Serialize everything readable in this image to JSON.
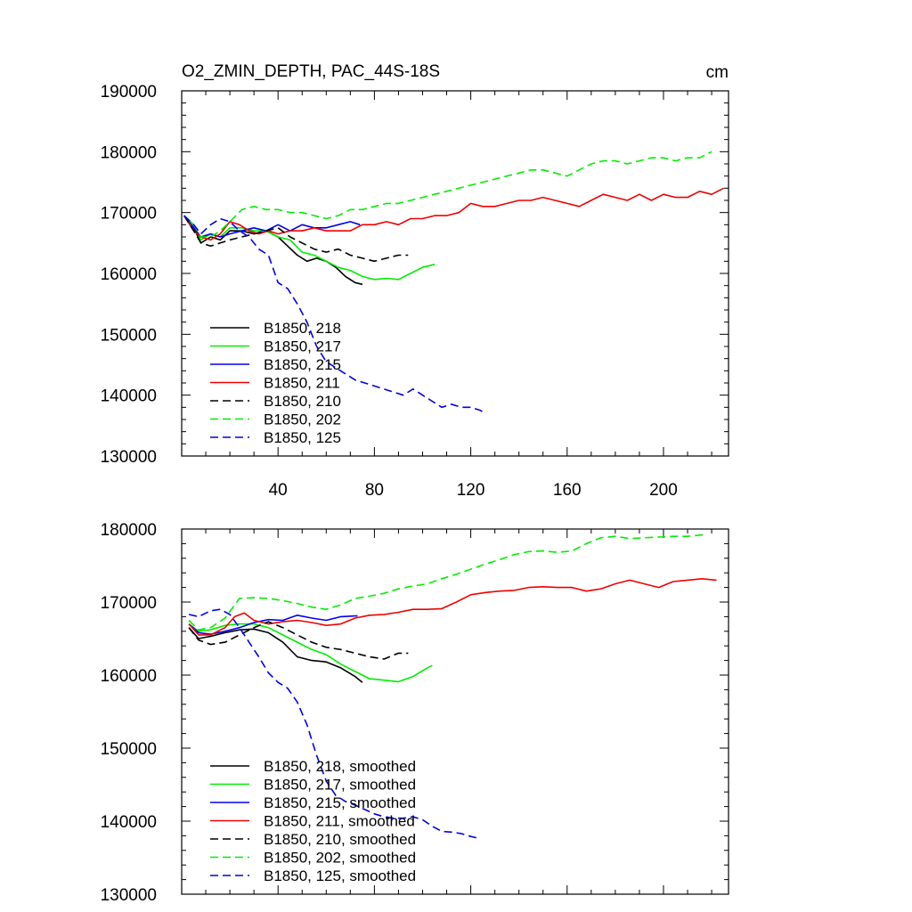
{
  "colors": {
    "black": "#000000",
    "green": "#00ee00",
    "blue": "#0000ee",
    "red": "#ee0000"
  },
  "chart_data": [
    {
      "type": "line",
      "title": "O2_ZMIN_DEPTH, PAC_44S-18S",
      "units": "cm",
      "xlim": [
        0,
        227
      ],
      "ylim": [
        130000,
        190000
      ],
      "x_ticks": [
        40,
        80,
        120,
        160,
        200
      ],
      "x_tick_labels": [
        "40",
        "80",
        "120",
        "160",
        "200"
      ],
      "y_ticks": [
        130000,
        140000,
        150000,
        160000,
        170000,
        180000,
        190000
      ],
      "y_tick_labels": [
        "130000",
        "140000",
        "150000",
        "160000",
        "170000",
        "180000",
        "190000"
      ],
      "legend_position": "bottom-left",
      "series": [
        {
          "name": "B1850, 218",
          "color": "#000000",
          "dash": "solid",
          "x": [
            1,
            5,
            8,
            12,
            16,
            20,
            25,
            30,
            35,
            40,
            44,
            48,
            52,
            56,
            60,
            64,
            68,
            72,
            75
          ],
          "y": [
            169500,
            167500,
            165000,
            166000,
            165500,
            167000,
            167000,
            166500,
            167000,
            166000,
            164500,
            163000,
            162000,
            162500,
            162000,
            161000,
            159500,
            158500,
            158200
          ]
        },
        {
          "name": "B1850, 217",
          "color": "#00ee00",
          "dash": "solid",
          "x": [
            1,
            5,
            8,
            12,
            16,
            20,
            25,
            30,
            35,
            40,
            45,
            50,
            55,
            60,
            65,
            70,
            75,
            80,
            85,
            90,
            95,
            100,
            105
          ],
          "y": [
            169500,
            168000,
            165500,
            166500,
            166000,
            167500,
            167500,
            167000,
            167000,
            166000,
            165500,
            163500,
            163000,
            162000,
            161000,
            160500,
            159500,
            159000,
            159200,
            159000,
            160000,
            161000,
            161500
          ]
        },
        {
          "name": "B1850, 215",
          "color": "#0000ee",
          "dash": "solid",
          "x": [
            1,
            5,
            8,
            12,
            16,
            20,
            25,
            30,
            35,
            40,
            45,
            50,
            55,
            60,
            65,
            70,
            74
          ],
          "y": [
            169500,
            167500,
            166000,
            166500,
            166000,
            166500,
            167000,
            167500,
            167000,
            168000,
            167000,
            168000,
            167500,
            167500,
            168000,
            168500,
            168000
          ]
        },
        {
          "name": "B1850, 211",
          "color": "#ee0000",
          "dash": "solid",
          "x": [
            1,
            5,
            8,
            12,
            16,
            20,
            24,
            28,
            32,
            36,
            40,
            45,
            50,
            55,
            60,
            65,
            70,
            75,
            80,
            85,
            90,
            95,
            100,
            105,
            110,
            115,
            120,
            125,
            130,
            135,
            140,
            145,
            150,
            155,
            160,
            165,
            170,
            175,
            180,
            185,
            190,
            195,
            200,
            205,
            210,
            215,
            220,
            225
          ],
          "y": [
            169500,
            167000,
            166000,
            165500,
            166500,
            168500,
            168000,
            167000,
            166500,
            167000,
            166500,
            167000,
            167000,
            167500,
            167000,
            167000,
            167000,
            168000,
            168000,
            168500,
            168000,
            169000,
            169000,
            169500,
            169500,
            170000,
            171500,
            171000,
            171000,
            171500,
            172000,
            172000,
            172500,
            172000,
            171500,
            171000,
            172000,
            173000,
            172500,
            172000,
            173000,
            172000,
            173000,
            172500,
            172500,
            173500,
            173000,
            174000
          ]
        },
        {
          "name": "B1850, 210",
          "color": "#000000",
          "dash": "dashed",
          "x": [
            1,
            5,
            8,
            12,
            16,
            20,
            25,
            30,
            35,
            40,
            45,
            50,
            55,
            60,
            65,
            70,
            75,
            80,
            85,
            90,
            94
          ],
          "y": [
            169500,
            167000,
            165000,
            164500,
            165000,
            165500,
            166000,
            166500,
            167000,
            167500,
            166000,
            165000,
            164000,
            163500,
            164000,
            163000,
            162500,
            162000,
            162500,
            163000,
            163000
          ]
        },
        {
          "name": "B1850, 202",
          "color": "#00ee00",
          "dash": "dashed",
          "x": [
            1,
            5,
            8,
            12,
            16,
            20,
            25,
            30,
            35,
            40,
            45,
            50,
            55,
            60,
            65,
            70,
            75,
            80,
            85,
            90,
            95,
            100,
            105,
            110,
            115,
            120,
            125,
            130,
            135,
            140,
            145,
            150,
            155,
            160,
            165,
            170,
            175,
            180,
            185,
            190,
            195,
            200,
            205,
            210,
            215,
            220
          ],
          "y": [
            169500,
            168000,
            166000,
            166000,
            167000,
            168500,
            170500,
            171000,
            170500,
            170500,
            170000,
            170000,
            169500,
            169000,
            169500,
            170500,
            170500,
            171000,
            171500,
            171500,
            172000,
            172500,
            173000,
            173500,
            174000,
            174500,
            175000,
            175500,
            176000,
            176500,
            177000,
            177000,
            176500,
            176000,
            177000,
            178000,
            178500,
            178500,
            178000,
            178500,
            179000,
            179000,
            178500,
            179000,
            179000,
            180000
          ]
        },
        {
          "name": "B1850, 125",
          "color": "#0000ee",
          "dash": "dashed",
          "x": [
            1,
            5,
            8,
            12,
            16,
            20,
            24,
            28,
            32,
            36,
            40,
            44,
            48,
            52,
            56,
            60,
            64,
            68,
            72,
            76,
            80,
            84,
            88,
            92,
            96,
            100,
            104,
            108,
            112,
            116,
            120,
            124,
            126
          ],
          "y": [
            169500,
            168000,
            166500,
            168000,
            169000,
            168500,
            167000,
            166000,
            164000,
            163000,
            158500,
            157500,
            155000,
            152000,
            148000,
            145500,
            144500,
            143500,
            142500,
            142000,
            141500,
            141000,
            140500,
            140000,
            141000,
            140000,
            139000,
            138000,
            138500,
            138000,
            138000,
            137500,
            137000
          ]
        }
      ]
    },
    {
      "type": "line",
      "title": "",
      "xlim": [
        0,
        227
      ],
      "ylim": [
        130000,
        180000
      ],
      "x_ticks": [
        40,
        80,
        120,
        160,
        200
      ],
      "x_tick_labels": [
        "",
        "",
        "",
        "",
        ""
      ],
      "y_ticks": [
        130000,
        140000,
        150000,
        160000,
        170000,
        180000
      ],
      "y_tick_labels": [
        "130000",
        "140000",
        "150000",
        "160000",
        "170000",
        "180000"
      ],
      "legend_position": "bottom-left",
      "series": [
        {
          "name": "B1850, 218, smoothed",
          "color": "#000000",
          "dash": "solid",
          "x": [
            3,
            7,
            12,
            18,
            24,
            30,
            36,
            42,
            48,
            54,
            60,
            66,
            72,
            75
          ],
          "y": [
            166500,
            165000,
            165300,
            165800,
            166200,
            166300,
            165800,
            164500,
            162500,
            162000,
            161800,
            161000,
            159800,
            159000
          ]
        },
        {
          "name": "B1850, 217, smoothed",
          "color": "#00ee00",
          "dash": "solid",
          "x": [
            3,
            7,
            12,
            18,
            24,
            30,
            36,
            42,
            48,
            54,
            60,
            66,
            72,
            78,
            84,
            90,
            96,
            102,
            104
          ],
          "y": [
            167000,
            166000,
            166200,
            166800,
            167000,
            167000,
            166500,
            165500,
            164500,
            163500,
            162800,
            161500,
            160500,
            159500,
            159300,
            159100,
            159800,
            161000,
            161300
          ]
        },
        {
          "name": "B1850, 215, smoothed",
          "color": "#0000ee",
          "dash": "solid",
          "x": [
            3,
            7,
            12,
            18,
            24,
            30,
            36,
            42,
            48,
            54,
            60,
            66,
            72,
            73
          ],
          "y": [
            167000,
            165800,
            165600,
            166000,
            166500,
            167200,
            167600,
            167500,
            168200,
            167800,
            167500,
            168000,
            168100,
            168100
          ]
        },
        {
          "name": "B1850, 211, smoothed",
          "color": "#ee0000",
          "dash": "solid",
          "x": [
            3,
            7,
            12,
            18,
            22,
            26,
            30,
            36,
            42,
            48,
            54,
            60,
            66,
            72,
            78,
            84,
            90,
            96,
            102,
            108,
            114,
            120,
            126,
            132,
            138,
            144,
            150,
            156,
            162,
            168,
            174,
            180,
            186,
            192,
            198,
            204,
            210,
            216,
            222
          ],
          "y": [
            167000,
            165500,
            165500,
            166500,
            168000,
            168500,
            167500,
            167000,
            167300,
            167500,
            167200,
            166800,
            167000,
            167800,
            168200,
            168300,
            168600,
            169000,
            169000,
            169100,
            170000,
            171000,
            171300,
            171500,
            171600,
            172000,
            172100,
            172000,
            172000,
            171500,
            171800,
            172500,
            173000,
            172500,
            172000,
            172800,
            173000,
            173200,
            173000
          ]
        },
        {
          "name": "B1850, 210, smoothed",
          "color": "#000000",
          "dash": "dashed",
          "x": [
            3,
            7,
            12,
            18,
            24,
            30,
            36,
            42,
            48,
            54,
            60,
            66,
            72,
            78,
            84,
            90,
            94
          ],
          "y": [
            166500,
            164800,
            164200,
            164500,
            165500,
            166500,
            167300,
            166500,
            165500,
            164500,
            163800,
            163500,
            163000,
            162500,
            162200,
            163000,
            163000
          ]
        },
        {
          "name": "B1850, 202, smoothed",
          "color": "#00ee00",
          "dash": "dashed",
          "x": [
            3,
            7,
            12,
            18,
            24,
            30,
            36,
            42,
            48,
            54,
            60,
            66,
            72,
            78,
            84,
            90,
            96,
            102,
            108,
            114,
            120,
            126,
            132,
            138,
            144,
            150,
            156,
            162,
            168,
            174,
            180,
            186,
            192,
            198,
            204,
            210,
            216,
            218
          ],
          "y": [
            167500,
            166200,
            166500,
            167800,
            170500,
            170600,
            170500,
            170200,
            169800,
            169300,
            169000,
            169600,
            170500,
            170800,
            171200,
            171800,
            172200,
            172500,
            173200,
            173800,
            174500,
            175200,
            175800,
            176500,
            176900,
            177000,
            176800,
            177000,
            178000,
            178800,
            179000,
            178700,
            178800,
            178900,
            179000,
            179000,
            179200,
            179300
          ]
        },
        {
          "name": "B1850, 125, smoothed",
          "color": "#0000ee",
          "dash": "dashed",
          "x": [
            3,
            7,
            12,
            16,
            20,
            24,
            28,
            32,
            36,
            40,
            44,
            48,
            52,
            56,
            60,
            64,
            68,
            72,
            76,
            80,
            84,
            88,
            92,
            96,
            100,
            104,
            108,
            112,
            116,
            120,
            124
          ],
          "y": [
            168300,
            168000,
            168800,
            169000,
            168300,
            166500,
            164500,
            162500,
            160300,
            159000,
            158200,
            156300,
            153200,
            149000,
            145500,
            143500,
            142700,
            142200,
            141600,
            141000,
            140600,
            140400,
            140400,
            140600,
            140200,
            139300,
            138600,
            138500,
            138300,
            137900,
            137600
          ]
        }
      ]
    }
  ]
}
